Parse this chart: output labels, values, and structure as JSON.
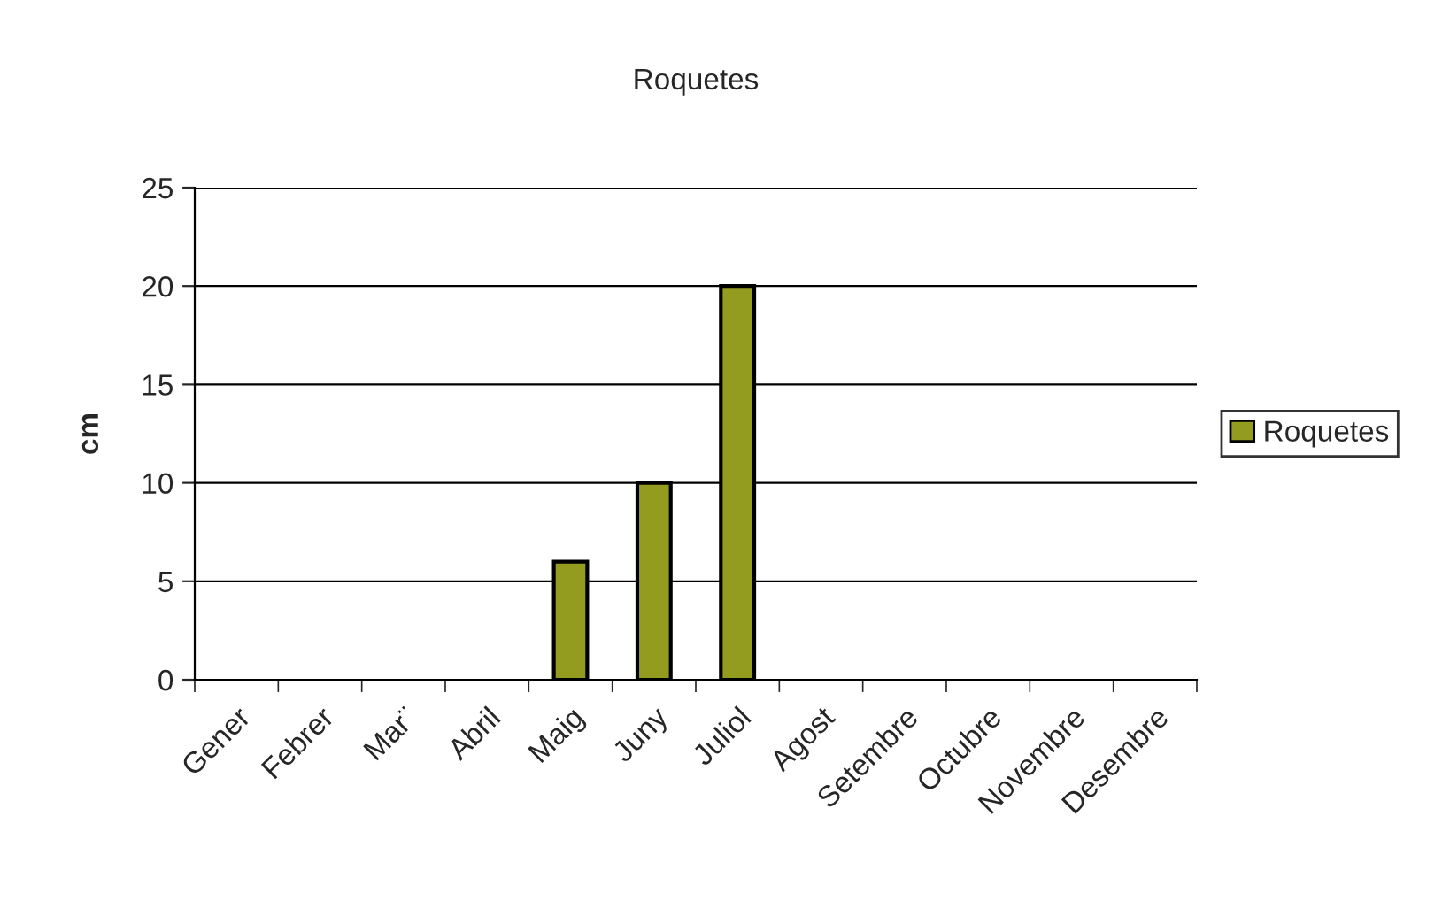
{
  "chart_data": {
    "type": "bar",
    "title": "Roquetes",
    "ylabel": "cm",
    "categories": [
      "Gener",
      "Febrer",
      "Mar¨",
      "Abril",
      "Maig",
      "Juny",
      "Juliol",
      "Agost",
      "Setembre",
      "Octubre",
      "Novembre",
      "Desembre"
    ],
    "series": [
      {
        "name": "Roquetes",
        "color": "#949c20",
        "values": [
          null,
          null,
          null,
          null,
          6,
          10,
          20,
          null,
          null,
          null,
          null,
          null
        ]
      }
    ],
    "ylim": [
      0,
      25
    ],
    "yticks": [
      0,
      5,
      10,
      15,
      20,
      25
    ],
    "grid": "y",
    "legend": "right"
  }
}
